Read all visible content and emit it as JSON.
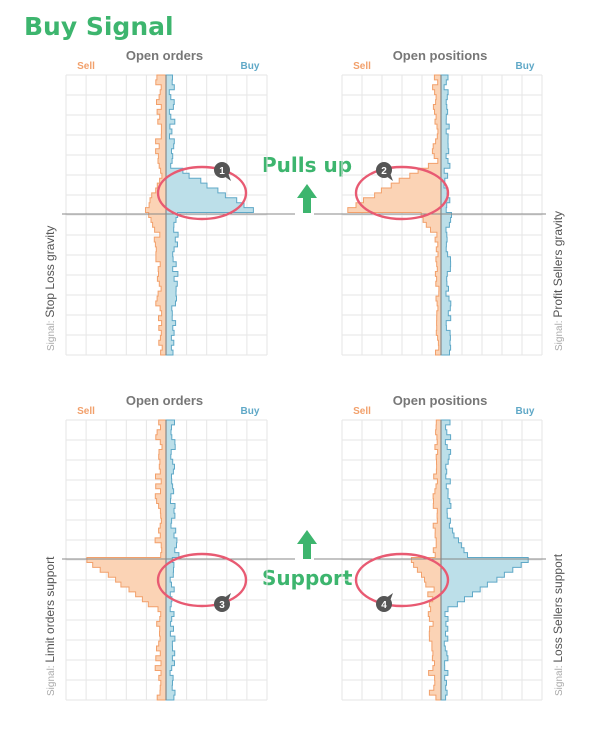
{
  "title": "Buy Signal",
  "colors": {
    "green": "#3db56e",
    "sell": "#f2a06b",
    "sell_fill": "#fbd3b5",
    "buy": "#5fa8c7",
    "buy_fill": "#bcdfe9",
    "ring": "#e85a72",
    "grid": "#e6e6e6",
    "axis": "#888888",
    "badge": "#555555",
    "head": "#777777"
  },
  "arrow_labels": {
    "top": "Pulls up",
    "bottom": "Support"
  },
  "panels": [
    {
      "heading": "Open orders",
      "sell_label": "Sell",
      "buy_label": "Buy",
      "signal_prefix": "Signal:",
      "signal_name": "Stop Loss gravity",
      "badge": "1"
    },
    {
      "heading": "Open positions",
      "sell_label": "Sell",
      "buy_label": "Buy",
      "signal_prefix": "Signal:",
      "signal_name": "Profit Sellers gravity",
      "badge": "2"
    },
    {
      "heading": "Open orders",
      "sell_label": "Sell",
      "buy_label": "Buy",
      "signal_prefix": "Signal:",
      "signal_name": "Limit orders support",
      "badge": "3"
    },
    {
      "heading": "Open positions",
      "sell_label": "Sell",
      "buy_label": "Buy",
      "signal_prefix": "Signal:",
      "signal_name": "Loss Sellers support",
      "badge": "4"
    }
  ],
  "chart_data": [
    {
      "type": "bar",
      "orientation": "horizontal-butterfly",
      "series": [
        {
          "name": "Sell",
          "values": [
            4,
            5,
            4,
            4,
            3,
            5,
            5,
            4,
            3,
            4,
            4,
            5,
            6,
            5,
            5,
            4,
            5,
            6,
            7,
            6,
            5,
            6,
            8,
            7,
            9,
            10,
            14,
            11,
            0,
            0,
            0,
            0,
            0,
            0,
            0,
            0,
            0,
            0,
            0,
            0,
            0,
            0,
            0,
            0,
            0,
            0,
            0,
            0,
            0,
            0,
            0,
            0,
            0,
            0,
            0,
            0,
            0
          ]
        },
        {
          "name": "Buy",
          "values": [
            2,
            3,
            3,
            2,
            3,
            4,
            4,
            3,
            5,
            4,
            5,
            6,
            5,
            4,
            6,
            5,
            4,
            5,
            6,
            6,
            14,
            16,
            18,
            22,
            26,
            30,
            34,
            32,
            0,
            0,
            0,
            0,
            0,
            0,
            0,
            0,
            0,
            0,
            0,
            0,
            0,
            0,
            0,
            0,
            0,
            0,
            0,
            0,
            0,
            0,
            0,
            0,
            0,
            0,
            0,
            0,
            0
          ]
        },
        {
          "name": "Sell-lower",
          "values": [
            0,
            0,
            0,
            0,
            0,
            0,
            0,
            0,
            0,
            0,
            0,
            0,
            0,
            0,
            0,
            0,
            0,
            0,
            0,
            0,
            0,
            0,
            0,
            0,
            0,
            0,
            0,
            0,
            14,
            13,
            11,
            9,
            8,
            7,
            8,
            6,
            7,
            5,
            6,
            5,
            6,
            4,
            5,
            4,
            5,
            4,
            3,
            4,
            3,
            3,
            2,
            3,
            3,
            2,
            2,
            2,
            0
          ]
        },
        {
          "name": "Buy-lower",
          "values": [
            0,
            0,
            0,
            0,
            0,
            0,
            0,
            0,
            0,
            0,
            0,
            0,
            0,
            0,
            0,
            0,
            0,
            0,
            0,
            0,
            0,
            0,
            0,
            0,
            0,
            0,
            0,
            0,
            12,
            10,
            9,
            8,
            7,
            6,
            7,
            5,
            6,
            4,
            5,
            6,
            4,
            3,
            5,
            4,
            4,
            3,
            4,
            3,
            3,
            4,
            3,
            2,
            3,
            3,
            2,
            2,
            0
          ]
        }
      ]
    }
  ]
}
